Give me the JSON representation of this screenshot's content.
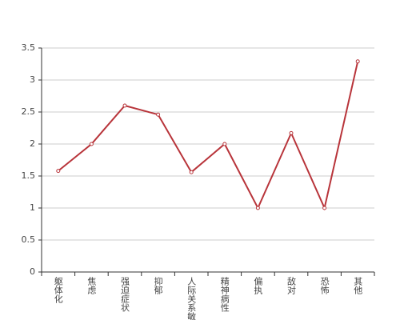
{
  "chart_data": {
    "type": "line",
    "categories": [
      "躯体化",
      "焦虑",
      "强迫症状",
      "抑郁",
      "人际关系敏感",
      "精神病性",
      "偏执",
      "敌对",
      "恐怖",
      "其他"
    ],
    "series": [
      {
        "color": "#b8343a",
        "values": [
          1.58,
          2.0,
          2.6,
          2.46,
          1.56,
          2.0,
          1.0,
          2.17,
          1.0,
          3.29
        ]
      }
    ],
    "ylim": [
      0,
      3.5
    ],
    "yticks": [
      0,
      0.5,
      1,
      1.5,
      2,
      2.5,
      3,
      3.5
    ],
    "grid": true
  }
}
